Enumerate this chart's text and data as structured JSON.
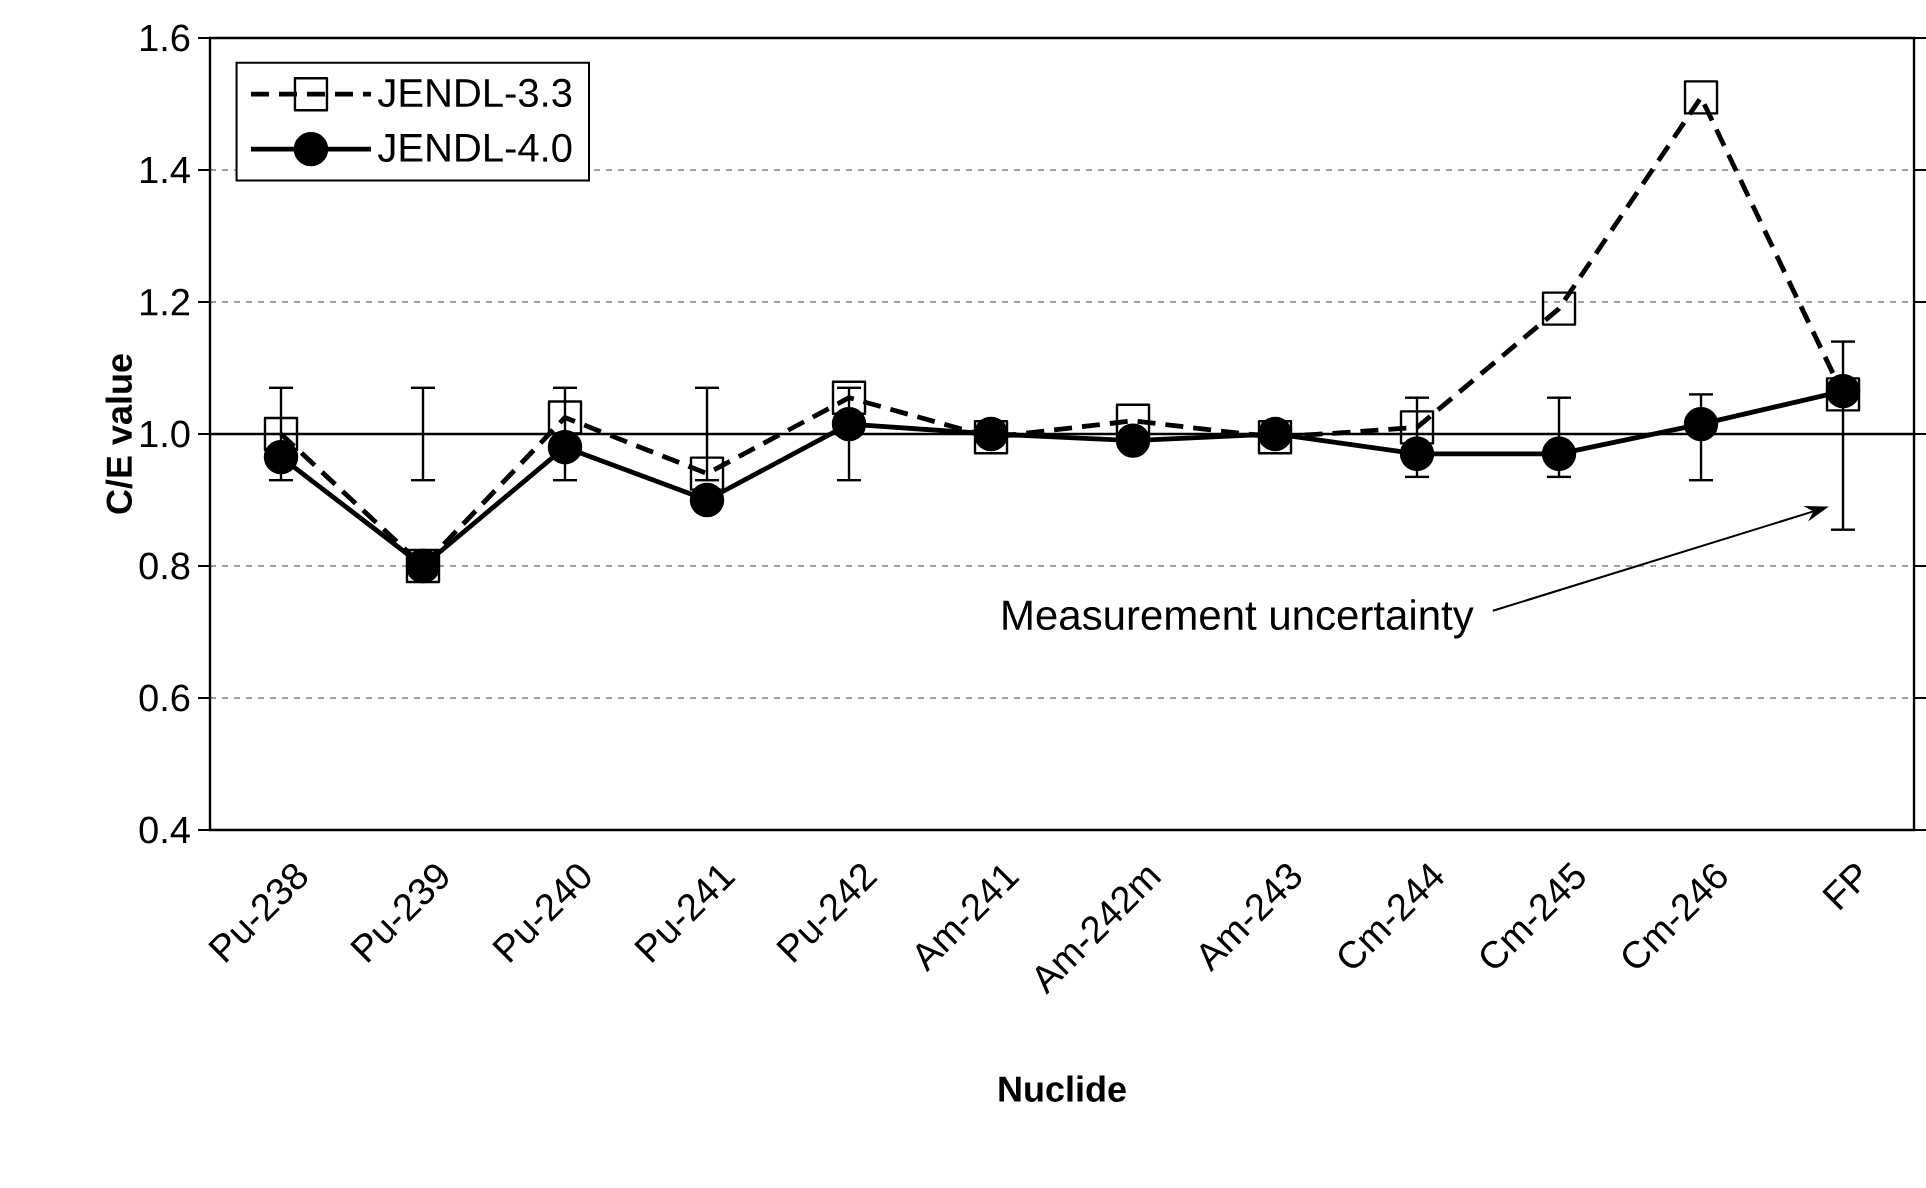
{
  "chart_data": {
    "type": "line",
    "xlabel": "Nuclide",
    "ylabel": "C/E value",
    "categories": [
      "Pu-238",
      "Pu-239",
      "Pu-240",
      "Pu-241",
      "Pu-242",
      "Am-241",
      "Am-242m",
      "Am-243",
      "Cm-244",
      "Cm-245",
      "Cm-246",
      "FP"
    ],
    "series": [
      {
        "name": "JENDL-3.3",
        "marker": "square",
        "line_style": "dashed",
        "color": "#000000",
        "values": [
          1.0,
          0.8,
          1.025,
          0.94,
          1.055,
          0.995,
          1.02,
          0.995,
          1.01,
          1.19,
          1.51,
          1.06
        ]
      },
      {
        "name": "JENDL-4.0",
        "marker": "circle",
        "line_style": "solid",
        "color": "#000000",
        "values": [
          0.965,
          0.8,
          0.98,
          0.9,
          1.015,
          1.0,
          0.99,
          1.0,
          0.97,
          0.97,
          1.015,
          1.065
        ],
        "errors": [
          [
            0.93,
            1.07
          ],
          [
            0.93,
            1.07
          ],
          [
            0.93,
            1.07
          ],
          [
            0.93,
            1.07
          ],
          [
            0.93,
            1.07
          ],
          null,
          null,
          null,
          [
            0.935,
            1.055
          ],
          [
            0.935,
            1.055
          ],
          [
            0.93,
            1.06
          ],
          [
            0.855,
            1.14
          ]
        ]
      }
    ],
    "ylim": [
      0.4,
      1.6
    ],
    "yticks": [
      {
        "value": 0.4,
        "label": "0.4"
      },
      {
        "value": 0.6,
        "label": "0.6"
      },
      {
        "value": 0.8,
        "label": "0.8"
      },
      {
        "value": 1.0,
        "label": "1.0"
      },
      {
        "value": 1.2,
        "label": "1.2"
      },
      {
        "value": 1.4,
        "label": "1.4"
      },
      {
        "value": 1.6,
        "label": "1.6"
      }
    ],
    "ref_lines": [
      {
        "axis": "y",
        "value": 1.0,
        "color": "#000000"
      }
    ],
    "annotations": [
      "Measurement uncertainty"
    ],
    "grid": "y",
    "legend": "top left"
  }
}
